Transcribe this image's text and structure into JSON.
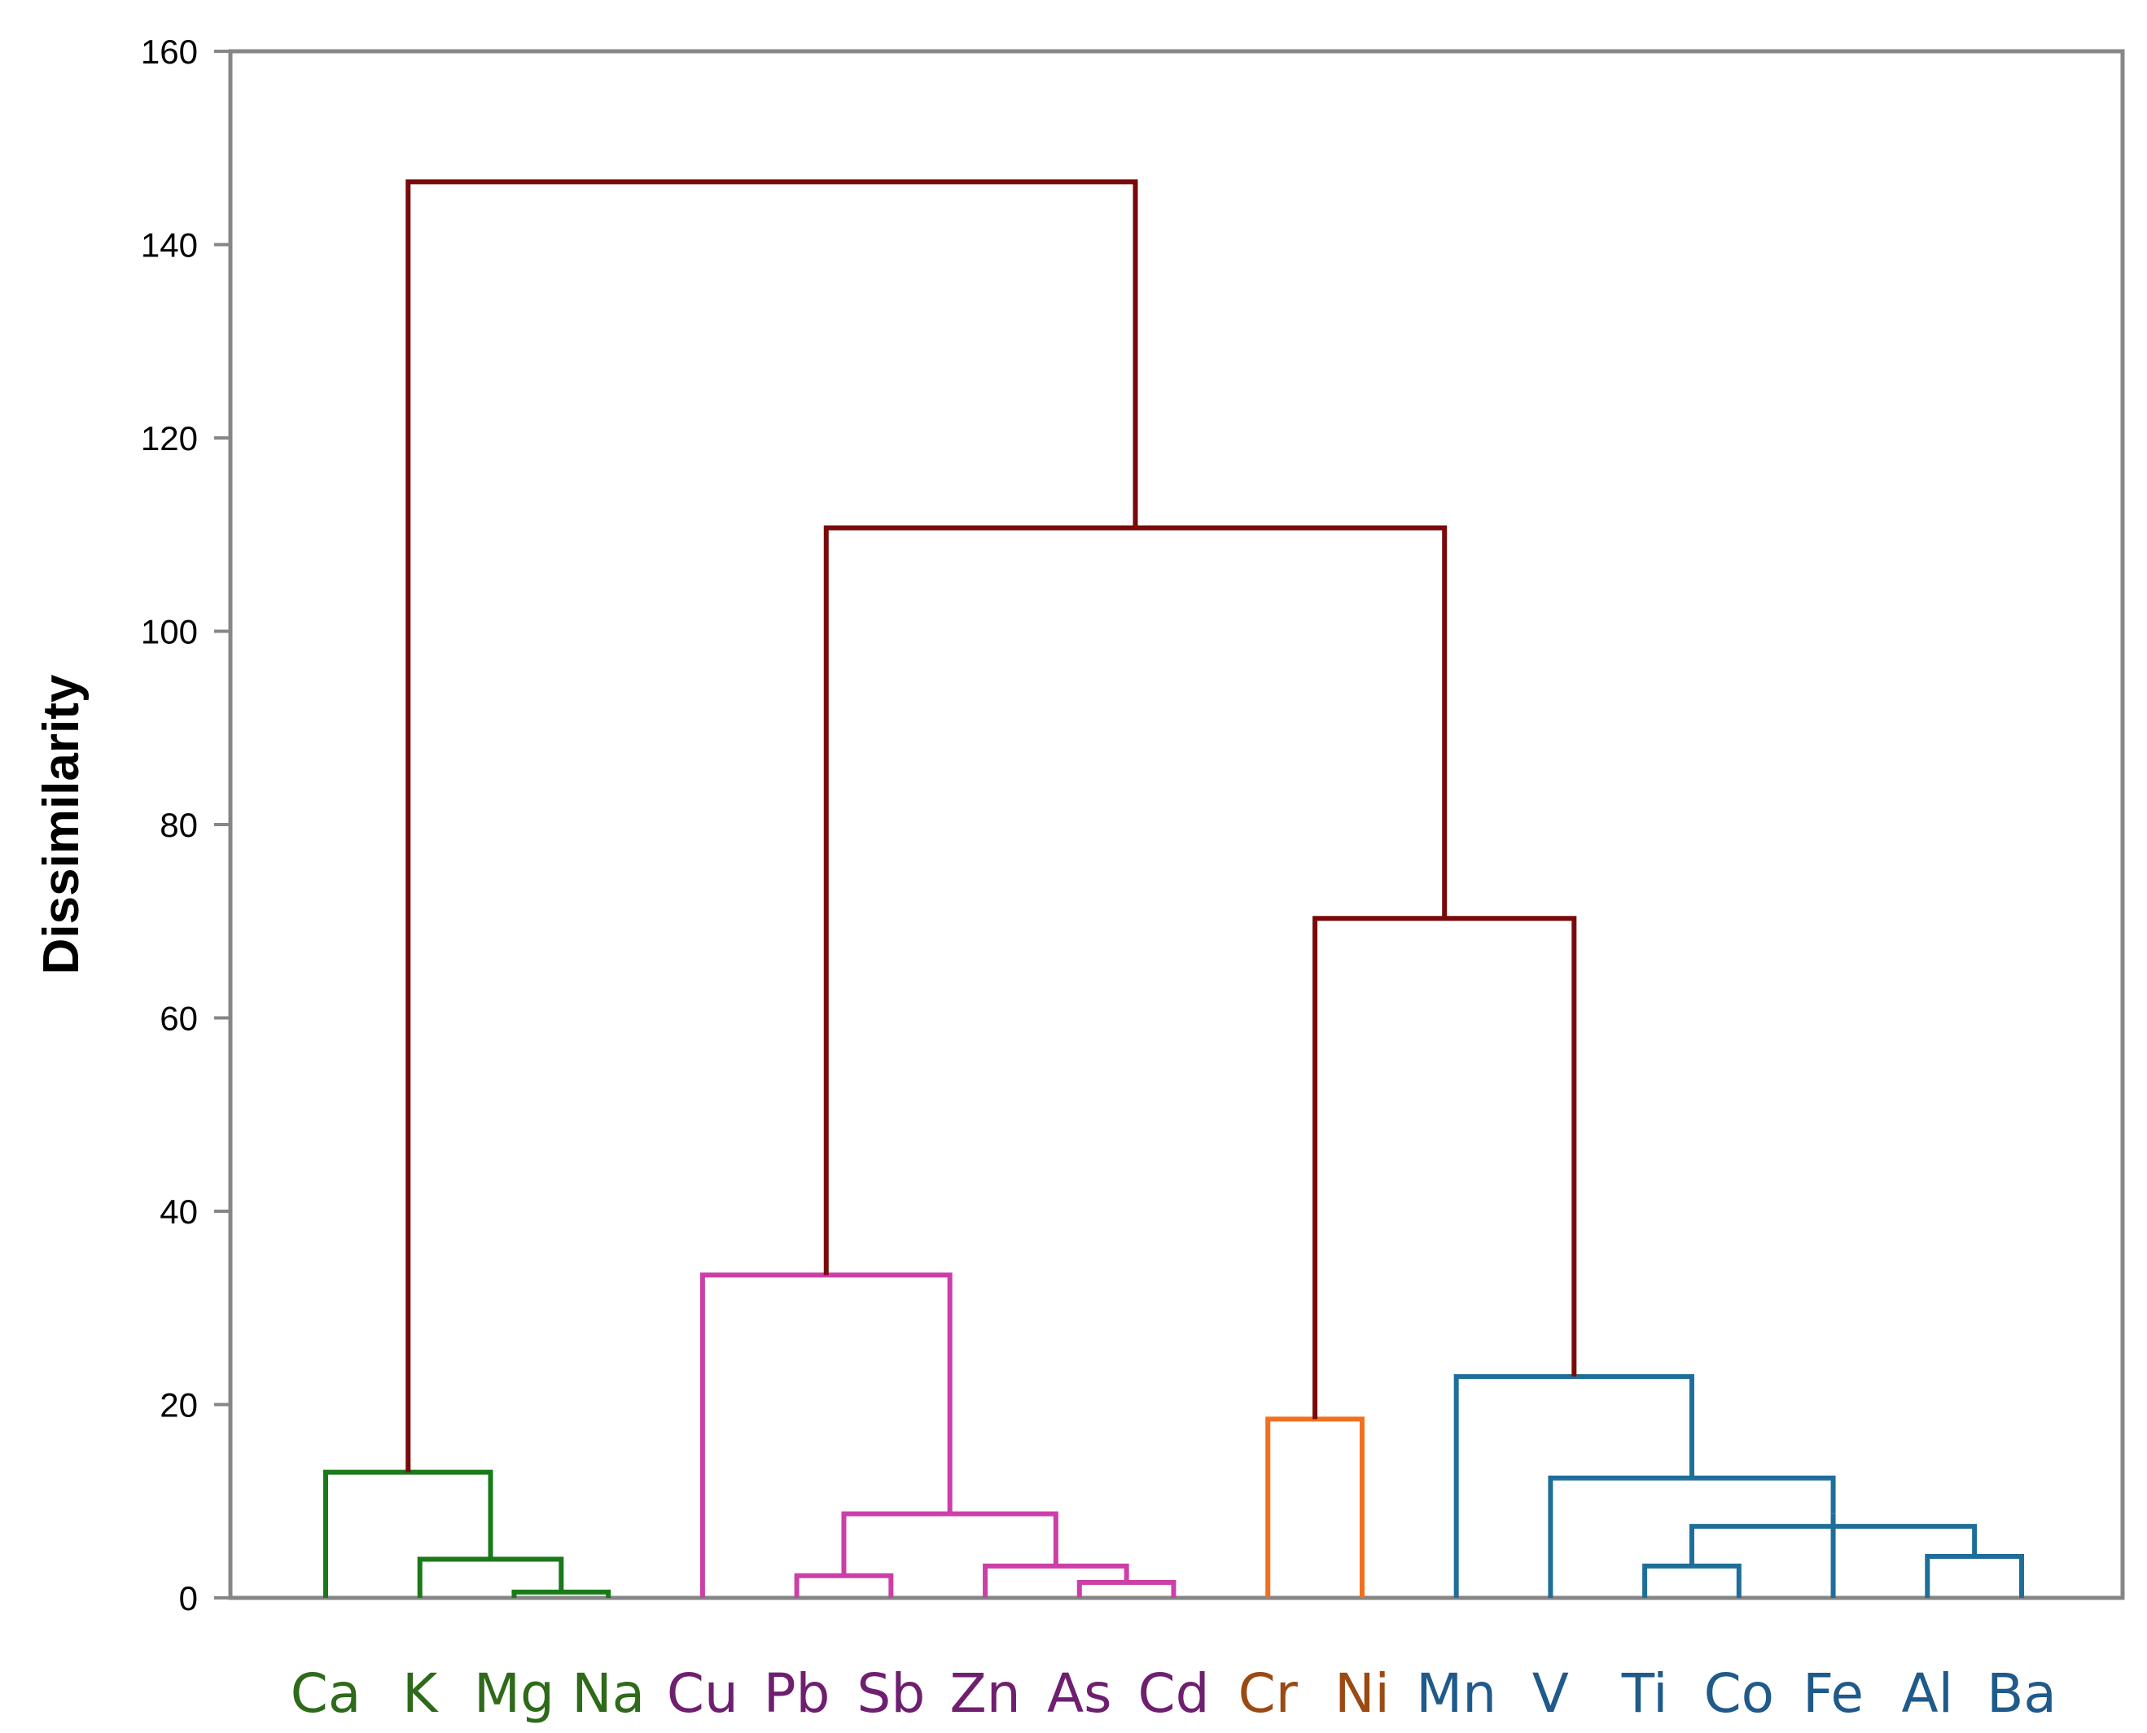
{
  "chart_data": {
    "type": "dendrogram",
    "ylabel": "Dissimilarity",
    "ylim": [
      0,
      160
    ],
    "yticks": [
      0,
      20,
      40,
      60,
      80,
      100,
      120,
      140,
      160
    ],
    "leaves": [
      {
        "name": "Ca",
        "color": "#2e6a1a"
      },
      {
        "name": "K",
        "color": "#2e6a1a"
      },
      {
        "name": "Mg",
        "color": "#2e6a1a"
      },
      {
        "name": "Na",
        "color": "#2e6a1a"
      },
      {
        "name": "Cu",
        "color": "#6f1f6f"
      },
      {
        "name": "Pb",
        "color": "#6f1f6f"
      },
      {
        "name": "Sb",
        "color": "#6f1f6f"
      },
      {
        "name": "Zn",
        "color": "#6f1f6f"
      },
      {
        "name": "As",
        "color": "#6f1f6f"
      },
      {
        "name": "Cd",
        "color": "#6f1f6f"
      },
      {
        "name": "Cr",
        "color": "#9a4a12"
      },
      {
        "name": "Ni",
        "color": "#9a4a12"
      },
      {
        "name": "Mn",
        "color": "#1f5a8a"
      },
      {
        "name": "V",
        "color": "#1f5a8a"
      },
      {
        "name": "Ti",
        "color": "#1f5a8a"
      },
      {
        "name": "Co",
        "color": "#1f5a8a"
      },
      {
        "name": "Fe",
        "color": "#1f5a8a"
      },
      {
        "name": "Al",
        "color": "#1f5a8a"
      },
      {
        "name": "Ba",
        "color": "#1f5a8a"
      }
    ],
    "merges": [
      {
        "id": "g1",
        "left": "Mg",
        "right": "Na",
        "height": 0.6,
        "color": "#1a7a1a"
      },
      {
        "id": "g2",
        "left": "K",
        "right": "g1",
        "height": 4.0,
        "color": "#1a7a1a"
      },
      {
        "id": "g3",
        "left": "Ca",
        "right": "g2",
        "height": 13.0,
        "color": "#1a7a1a"
      },
      {
        "id": "p1",
        "left": "Pb",
        "right": "Sb",
        "height": 2.3,
        "color": "#cc3fa8"
      },
      {
        "id": "p2",
        "left": "As",
        "right": "Cd",
        "height": 1.6,
        "color": "#cc3fa8"
      },
      {
        "id": "p3",
        "left": "Zn",
        "right": "p2",
        "height": 3.3,
        "color": "#cc3fa8"
      },
      {
        "id": "p4",
        "left": "p1",
        "right": "p3",
        "height": 8.7,
        "color": "#cc3fa8"
      },
      {
        "id": "p5",
        "left": "Cu",
        "right": "p4",
        "height": 33.4,
        "color": "#cc3fa8"
      },
      {
        "id": "o1",
        "left": "Cr",
        "right": "Ni",
        "height": 18.5,
        "color": "#f07020"
      },
      {
        "id": "b1",
        "left": "Ti",
        "right": "Co",
        "height": 3.3,
        "color": "#1f6e9a"
      },
      {
        "id": "b2",
        "left": "Al",
        "right": "Ba",
        "height": 4.3,
        "color": "#1f6e9a"
      },
      {
        "id": "b3",
        "left": "b1",
        "right": "b2",
        "height": 7.4,
        "color": "#1f6e9a"
      },
      {
        "id": "b4",
        "left": "Fe",
        "right": "b3",
        "height": 8.7,
        "color": "#1f6e9a"
      },
      {
        "id": "b5",
        "left": "V",
        "right": "b4",
        "height": 12.4,
        "color": "#1f6e9a"
      },
      {
        "id": "b6",
        "left": "Mn",
        "right": "b5",
        "height": 22.9,
        "color": "#1f6e9a"
      },
      {
        "id": "r1",
        "left": "o1",
        "right": "b6",
        "height": 70.3,
        "color": "#7a0a0a"
      },
      {
        "id": "r2",
        "left": "p5",
        "right": "r1",
        "height": 110.7,
        "color": "#7a0a0a"
      },
      {
        "id": "r3",
        "left": "g3",
        "right": "r2",
        "height": 146.5,
        "color": "#7a0a0a"
      }
    ]
  }
}
